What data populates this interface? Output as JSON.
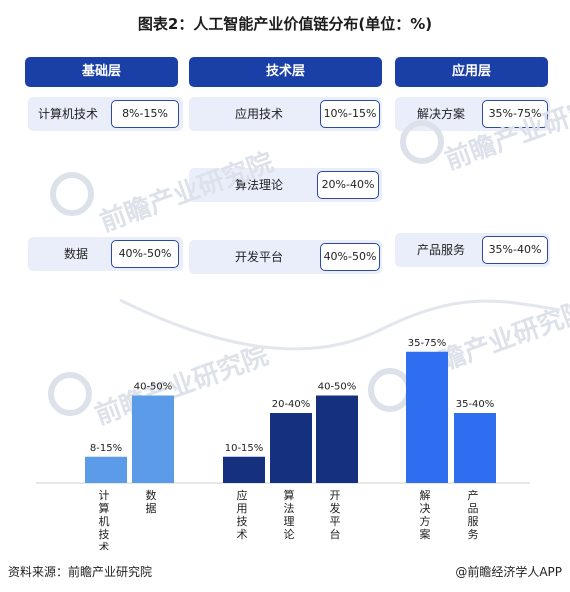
{
  "title": "图表2：人工智能产业价值链分布(单位：%)",
  "columns": [
    {
      "name": "基础层",
      "color": "#1a3fa6"
    },
    {
      "name": "技术层",
      "color": "#1a3fa6"
    },
    {
      "name": "应用层",
      "color": "#1a3fa6"
    }
  ],
  "rows": {
    "base": [
      {
        "label": "计算机技术",
        "value": "8%-15%"
      },
      {
        "label": "数据",
        "value": "40%-50%"
      }
    ],
    "tech": [
      {
        "label": "应用技术",
        "value": "10%-15%"
      },
      {
        "label": "算法理论",
        "value": "20%-40%"
      },
      {
        "label": "开发平台",
        "value": "40%-50%"
      }
    ],
    "app": [
      {
        "label": "解决方案",
        "value": "35%-75%"
      },
      {
        "label": "产品服务",
        "value": "35%-40%"
      }
    ]
  },
  "watermark": "前瞻产业研究院",
  "footer": {
    "source": "资料来源：前瞻产业研究院",
    "brand": "@前瞻经济学人APP"
  },
  "chart_data": {
    "type": "bar",
    "categories": [
      "计算机技术",
      "数据",
      "应用技术",
      "算法理论",
      "开发平台",
      "解决方案",
      "产品服务"
    ],
    "labels": [
      "8-15%",
      "40-50%",
      "10-15%",
      "20-40%",
      "40-50%",
      "35-75%",
      "35-40%"
    ],
    "values": [
      15,
      50,
      15,
      40,
      50,
      75,
      40
    ],
    "colors": [
      "#5b9be8",
      "#5b9be8",
      "#14307f",
      "#14307f",
      "#14307f",
      "#2f6ef0",
      "#2f6ef0"
    ],
    "groups": [
      "基础层",
      "基础层",
      "技术层",
      "技术层",
      "技术层",
      "应用层",
      "应用层"
    ],
    "ylim": [
      0,
      80
    ]
  }
}
